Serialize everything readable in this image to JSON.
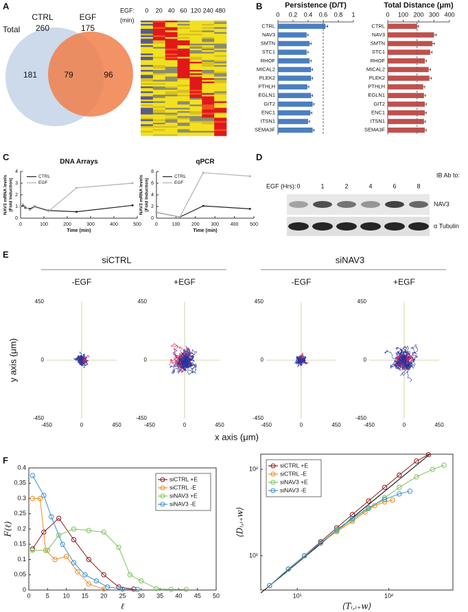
{
  "panel_labels": [
    "A",
    "B",
    "C",
    "D",
    "E",
    "F"
  ],
  "venn": {
    "total_label": "Total",
    "sets": [
      {
        "name": "CTRL",
        "total": 260
      },
      {
        "name": "EGF",
        "total": 175
      }
    ],
    "regions": {
      "only_ctrl": 181,
      "both": 79,
      "only_egf": 96
    }
  },
  "heatmap": {
    "label": "EGF:",
    "unit": "(min)",
    "columns": [
      0,
      20,
      40,
      60,
      120,
      240,
      480
    ]
  },
  "western_blot": {
    "time_label": "EGF (Hrs):",
    "lanes": [
      0,
      1,
      2,
      4,
      6,
      8
    ],
    "antibody_header": "IB Ab to:",
    "rows": [
      "NAV3",
      "α Tubulin"
    ]
  },
  "trajectories": {
    "groups": [
      {
        "name": "siCTRL",
        "conditions": [
          "-EGF",
          "+EGF"
        ]
      },
      {
        "name": "siNAV3",
        "conditions": [
          "-EGF",
          "+EGF"
        ]
      }
    ],
    "ticks": [
      -450,
      0,
      450
    ],
    "ylabel": "y axis (μm)",
    "xlabel": "x axis (μm)"
  },
  "chart_data": [
    {
      "type": "bar",
      "title": "Persistence (D/T)",
      "categories": [
        "CTRL",
        "NAV3",
        "SMTN",
        "STC1",
        "RHOF",
        "MICAL2",
        "PLEK2",
        "PTHLH",
        "EGLN1",
        "GIT2",
        "ENC1",
        "ITSN1",
        "SEMA3F"
      ],
      "values": [
        0.63,
        0.38,
        0.42,
        0.38,
        0.42,
        0.44,
        0.44,
        0.39,
        0.44,
        0.46,
        0.43,
        0.4,
        0.46
      ],
      "errors": [
        0.03,
        0.02,
        0.02,
        0.02,
        0.02,
        0.02,
        0.02,
        0.02,
        0.02,
        0.02,
        0.02,
        0.02,
        0.02
      ],
      "color": "#4a7fc0",
      "xlim": [
        0,
        1
      ],
      "xticks": [
        0,
        0.2,
        0.4,
        0.6,
        0.8,
        1
      ],
      "reference_line": 0.6
    },
    {
      "type": "bar",
      "title": "Total Distance (μm)",
      "categories": [
        "CTRL",
        "NAV3",
        "SMTN",
        "STC1",
        "RHOF",
        "MICAL2",
        "PLEK2",
        "PTHLH",
        "EGLN1",
        "GIT2",
        "ENC1",
        "ITSN1",
        "SEMA3F"
      ],
      "values": [
        190,
        300,
        290,
        275,
        240,
        265,
        270,
        230,
        235,
        240,
        240,
        235,
        240
      ],
      "errors": [
        10,
        15,
        12,
        12,
        10,
        12,
        12,
        10,
        10,
        10,
        10,
        10,
        10
      ],
      "color": "#c0504d",
      "xlim": [
        0,
        400
      ],
      "xticks": [
        0,
        100,
        200,
        300,
        400
      ],
      "reference_line": 190
    },
    {
      "type": "line",
      "title": "DNA Arrays",
      "xlabel": "Time (min)",
      "ylabel": [
        "NAV3 mRNA levels",
        "(Fold Induction)"
      ],
      "xlim": [
        0,
        500
      ],
      "xticks": [
        0,
        100,
        200,
        300,
        400,
        500
      ],
      "ylim": [
        0,
        4
      ],
      "yticks": [
        0,
        1,
        2,
        3,
        4
      ],
      "legend": "upper left",
      "series": [
        {
          "name": "CTRL",
          "color": "#222222",
          "x": [
            0,
            10,
            20,
            40,
            60,
            120,
            240,
            480
          ],
          "values": [
            1,
            1.1,
            0.9,
            0.8,
            1.0,
            0.65,
            0.55,
            1.1
          ]
        },
        {
          "name": "EGF",
          "color": "#b0b0b0",
          "x": [
            0,
            10,
            20,
            40,
            60,
            120,
            240,
            480
          ],
          "values": [
            1,
            1.2,
            1.0,
            0.7,
            0.95,
            0.6,
            2.6,
            3.0
          ]
        }
      ]
    },
    {
      "type": "line",
      "title": "qPCR",
      "xlabel": "Time (min)",
      "ylabel": [
        "NAV3 mRNA levels",
        "(Fold Induction)"
      ],
      "xlim": [
        0,
        500
      ],
      "xticks": [
        0,
        100,
        200,
        300,
        400,
        500
      ],
      "ylim": [
        0,
        8
      ],
      "yticks": [
        0,
        2,
        4,
        6,
        8
      ],
      "legend": "upper left",
      "series": [
        {
          "name": "CTRL",
          "color": "#222222",
          "x": [
            0,
            120,
            240,
            480
          ],
          "values": [
            1,
            0.2,
            2.1,
            1.6
          ]
        },
        {
          "name": "EGF",
          "color": "#b0b0b0",
          "x": [
            0,
            120,
            240,
            480
          ],
          "values": [
            1,
            0.2,
            7.8,
            7.2
          ]
        }
      ]
    },
    {
      "type": "line",
      "xlabel": "ℓ",
      "ylabel": [
        "F(ℓ)"
      ],
      "markers": "circle",
      "frame": true,
      "legend": "upper right",
      "xlim": [
        0,
        50
      ],
      "xticks": [
        0,
        5,
        10,
        15,
        20,
        25,
        30,
        35,
        40,
        45,
        50
      ],
      "ylim": [
        0,
        0.4
      ],
      "yticks": [
        0,
        0.05,
        0.1,
        0.15,
        0.2,
        0.25,
        0.3,
        0.35,
        0.4
      ],
      "series": [
        {
          "name": "siCTRL +E",
          "color": "#8b1a1a",
          "x": [
            1,
            4,
            8,
            12,
            16,
            20,
            24,
            28
          ],
          "values": [
            0.135,
            0.19,
            0.235,
            0.165,
            0.1,
            0.05,
            0.01,
            0.003
          ]
        },
        {
          "name": "siCTRL -E",
          "color": "#f08a1c",
          "x": [
            1,
            3,
            4.5,
            7,
            10,
            13,
            16,
            20
          ],
          "values": [
            0.3,
            0.3,
            0.13,
            0.1,
            0.11,
            0.06,
            0.02,
            0.003
          ]
        },
        {
          "name": "siNAV3 +E",
          "color": "#7cc35a",
          "x": [
            1,
            5,
            8,
            12,
            16,
            20,
            24,
            27,
            30,
            34,
            38,
            42
          ],
          "values": [
            0.13,
            0.13,
            0.18,
            0.2,
            0.195,
            0.19,
            0.14,
            0.05,
            0.03,
            0.005,
            0.002,
            0.002
          ]
        },
        {
          "name": "siNAV3 -E",
          "color": "#3a8fd0",
          "x": [
            1,
            4,
            6,
            9,
            12,
            15,
            18,
            21,
            25,
            29
          ],
          "values": [
            0.375,
            0.31,
            0.24,
            0.15,
            0.09,
            0.05,
            0.03,
            0.01,
            0.003,
            0.002
          ]
        }
      ]
    },
    {
      "type": "line",
      "xlabel": "⟨Tᵢ,ᵢ₊w⟩",
      "ylabel": [
        "⟨Dᵢ,ᵢ₊w⟩"
      ],
      "markers": "circle",
      "frame": true,
      "legend": "upper left",
      "xlog": true,
      "ylog": true,
      "xlim": [
        4,
        500
      ],
      "xticks": [
        {
          "value": 10,
          "label": "10¹"
        },
        {
          "value": 100,
          "label": "10²"
        }
      ],
      "ylim": [
        4,
        150
      ],
      "yticks": [
        {
          "value": 10,
          "label": "10¹"
        },
        {
          "value": 100,
          "label": "10²"
        }
      ],
      "fit_line": {
        "color": "#000000",
        "x": [
          4,
          280
        ],
        "values": [
          3.7,
          150
        ]
      },
      "series": [
        {
          "name": "siCTRL +E",
          "color": "#8b1a1a",
          "x": [
            5,
            8,
            12,
            18,
            27,
            40,
            60,
            90,
            130,
            200,
            270
          ],
          "values": [
            4.5,
            7,
            10,
            14.5,
            21,
            30,
            43,
            62,
            86,
            125,
            148
          ]
        },
        {
          "name": "siCTRL -E",
          "color": "#f08a1c",
          "x": [
            5,
            8,
            12,
            18,
            27,
            40,
            55,
            70,
            90,
            110
          ],
          "values": [
            4.5,
            7,
            10,
            14,
            19,
            25,
            32,
            38,
            42,
            44
          ]
        },
        {
          "name": "siNAV3 +E",
          "color": "#7cc35a",
          "x": [
            5,
            8,
            12,
            18,
            27,
            40,
            60,
            90,
            130,
            200,
            300,
            400
          ],
          "values": [
            4.5,
            7,
            10,
            14,
            19.5,
            26,
            35,
            47,
            62,
            82,
            100,
            112
          ]
        },
        {
          "name": "siNAV3 -E",
          "color": "#3a8fd0",
          "x": [
            5,
            8,
            12,
            18,
            27,
            40,
            60,
            90,
            130,
            170
          ],
          "values": [
            4.5,
            7,
            10,
            14,
            20,
            27,
            36,
            45,
            52,
            56
          ]
        }
      ]
    }
  ]
}
